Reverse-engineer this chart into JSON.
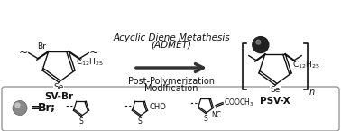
{
  "bg_color": "#ffffff",
  "text_color": "#111111",
  "fig_width": 3.78,
  "fig_height": 1.45,
  "dpi": 100,
  "title_line1": "Acyclic Diene Metathesis",
  "title_line2": "(ADMET)",
  "post_poly": "Post-Polymerization",
  "modification": "Modification",
  "label_sv": "SV-Br",
  "label_psv": "PSV-X",
  "br_label": "Br",
  "se_label": "Se",
  "s_label": "S",
  "c12_label": "C",
  "h25_label": "12",
  "n_label": "n",
  "eq_br": "= Br;",
  "cho_label": "CHO",
  "nc_label": "NC",
  "cooch3_label": "COOCH",
  "sub3_label": "3"
}
